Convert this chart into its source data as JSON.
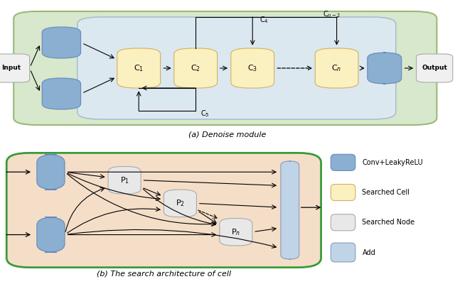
{
  "title_a": "(a) Denoise module",
  "title_b": "(b) The search architecture of cell",
  "outer_bg_top": "#D8E8CC",
  "inner_bg_top": "#DCE8F0",
  "inner_bg_bot": "#F5DEC8",
  "cell_color": "#FAF0C0",
  "node_color": "#E8E8E8",
  "conv_color": "#8AAFD0",
  "add_color": "#C0D4E8",
  "input_output_color": "#F0F0F0",
  "outer_border_top": "#9AB87A",
  "outer_border_bot": "#3A9A3A",
  "inner_border_top": "#A0B8CC",
  "cell_border": "#D4B060",
  "conv_border": "#6688BB",
  "legend_labels": [
    "Conv+LeakyReLU",
    "Searched Cell",
    "Searched Node",
    "Add"
  ],
  "legend_colors": [
    "#8AAFD0",
    "#FAF0C0",
    "#E8E8E8",
    "#C0D4E8"
  ]
}
